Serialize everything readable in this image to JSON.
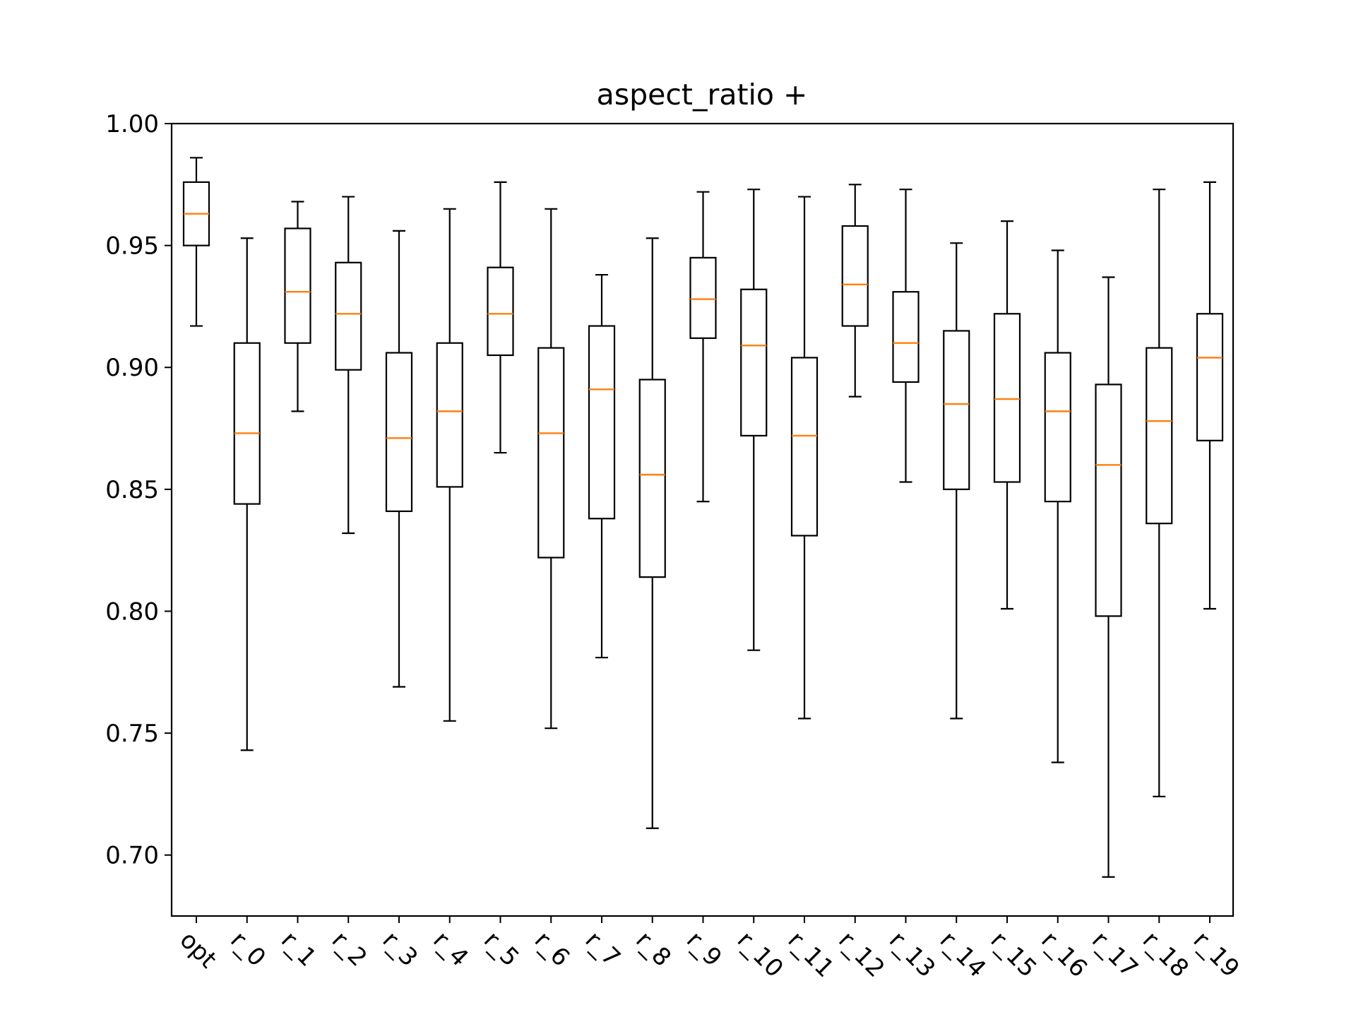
{
  "chart_data": {
    "type": "boxplot",
    "title": "aspect_ratio +",
    "xlabel": "",
    "ylabel": "",
    "ylim": [
      0.675,
      1.0
    ],
    "yticks": [
      "0.70",
      "0.75",
      "0.80",
      "0.85",
      "0.90",
      "0.95",
      "1.00"
    ],
    "ytick_values": [
      0.7,
      0.75,
      0.8,
      0.85,
      0.9,
      0.95,
      1.0
    ],
    "categories": [
      "opt",
      "r_0",
      "r_1",
      "r_2",
      "r_3",
      "r_4",
      "r_5",
      "r_6",
      "r_7",
      "r_8",
      "r_9",
      "r_10",
      "r_11",
      "r_12",
      "r_13",
      "r_14",
      "r_15",
      "r_16",
      "r_17",
      "r_18",
      "r_19"
    ],
    "boxes": [
      {
        "label": "opt",
        "whislo": 0.917,
        "q1": 0.95,
        "med": 0.963,
        "q3": 0.976,
        "whishi": 0.986
      },
      {
        "label": "r_0",
        "whislo": 0.743,
        "q1": 0.844,
        "med": 0.873,
        "q3": 0.91,
        "whishi": 0.953
      },
      {
        "label": "r_1",
        "whislo": 0.882,
        "q1": 0.91,
        "med": 0.931,
        "q3": 0.957,
        "whishi": 0.968
      },
      {
        "label": "r_2",
        "whislo": 0.832,
        "q1": 0.899,
        "med": 0.922,
        "q3": 0.943,
        "whishi": 0.97
      },
      {
        "label": "r_3",
        "whislo": 0.769,
        "q1": 0.841,
        "med": 0.871,
        "q3": 0.906,
        "whishi": 0.956
      },
      {
        "label": "r_4",
        "whislo": 0.755,
        "q1": 0.851,
        "med": 0.882,
        "q3": 0.91,
        "whishi": 0.965
      },
      {
        "label": "r_5",
        "whislo": 0.865,
        "q1": 0.905,
        "med": 0.922,
        "q3": 0.941,
        "whishi": 0.976
      },
      {
        "label": "r_6",
        "whislo": 0.752,
        "q1": 0.822,
        "med": 0.873,
        "q3": 0.908,
        "whishi": 0.965
      },
      {
        "label": "r_7",
        "whislo": 0.781,
        "q1": 0.838,
        "med": 0.891,
        "q3": 0.917,
        "whishi": 0.938
      },
      {
        "label": "r_8",
        "whislo": 0.711,
        "q1": 0.814,
        "med": 0.856,
        "q3": 0.895,
        "whishi": 0.953
      },
      {
        "label": "r_9",
        "whislo": 0.845,
        "q1": 0.912,
        "med": 0.928,
        "q3": 0.945,
        "whishi": 0.972
      },
      {
        "label": "r_10",
        "whislo": 0.784,
        "q1": 0.872,
        "med": 0.909,
        "q3": 0.932,
        "whishi": 0.973
      },
      {
        "label": "r_11",
        "whislo": 0.756,
        "q1": 0.831,
        "med": 0.872,
        "q3": 0.904,
        "whishi": 0.97
      },
      {
        "label": "r_12",
        "whislo": 0.888,
        "q1": 0.917,
        "med": 0.934,
        "q3": 0.958,
        "whishi": 0.975
      },
      {
        "label": "r_13",
        "whislo": 0.853,
        "q1": 0.894,
        "med": 0.91,
        "q3": 0.931,
        "whishi": 0.973
      },
      {
        "label": "r_14",
        "whislo": 0.756,
        "q1": 0.85,
        "med": 0.885,
        "q3": 0.915,
        "whishi": 0.951
      },
      {
        "label": "r_15",
        "whislo": 0.801,
        "q1": 0.853,
        "med": 0.887,
        "q3": 0.922,
        "whishi": 0.96
      },
      {
        "label": "r_16",
        "whislo": 0.738,
        "q1": 0.845,
        "med": 0.882,
        "q3": 0.906,
        "whishi": 0.948
      },
      {
        "label": "r_17",
        "whislo": 0.691,
        "q1": 0.798,
        "med": 0.86,
        "q3": 0.893,
        "whishi": 0.937
      },
      {
        "label": "r_18",
        "whislo": 0.724,
        "q1": 0.836,
        "med": 0.878,
        "q3": 0.908,
        "whishi": 0.973
      },
      {
        "label": "r_19",
        "whislo": 0.801,
        "q1": 0.87,
        "med": 0.904,
        "q3": 0.922,
        "whishi": 0.976
      }
    ],
    "colors": {
      "box": "#000000",
      "median": "#ff7f0e",
      "axes": "#000000",
      "background": "#ffffff"
    }
  }
}
